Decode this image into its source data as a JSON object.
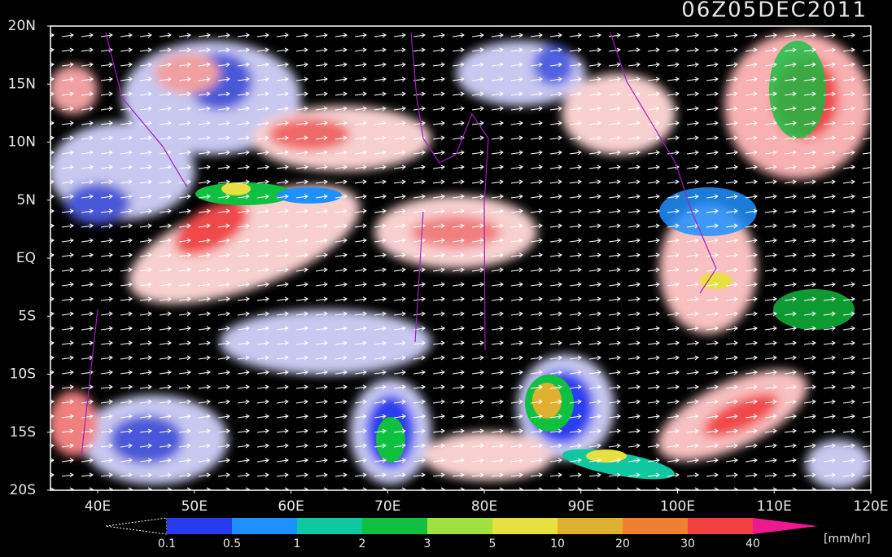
{
  "map": {
    "title": "06Z05DEC2011",
    "lat_labels": [
      "20N",
      "15N",
      "10N",
      "5N",
      "EQ",
      "5S",
      "10S",
      "15S",
      "20S"
    ],
    "lon_labels": [
      "40E",
      "50E",
      "60E",
      "70E",
      "80E",
      "90E",
      "100E",
      "110E",
      "120E"
    ],
    "colorbar": {
      "labels": [
        "0.1",
        "0.5",
        "1",
        "2",
        "3",
        "5",
        "10",
        "20",
        "30",
        "40"
      ],
      "colors": [
        "#2a3cf0",
        "#1e90ff",
        "#10c8a0",
        "#10c040",
        "#a0e040",
        "#e8e040",
        "#e0b030",
        "#f08030",
        "#f04040"
      ],
      "over_color": "#f01890",
      "unit": "[mm/hr]"
    }
  }
}
